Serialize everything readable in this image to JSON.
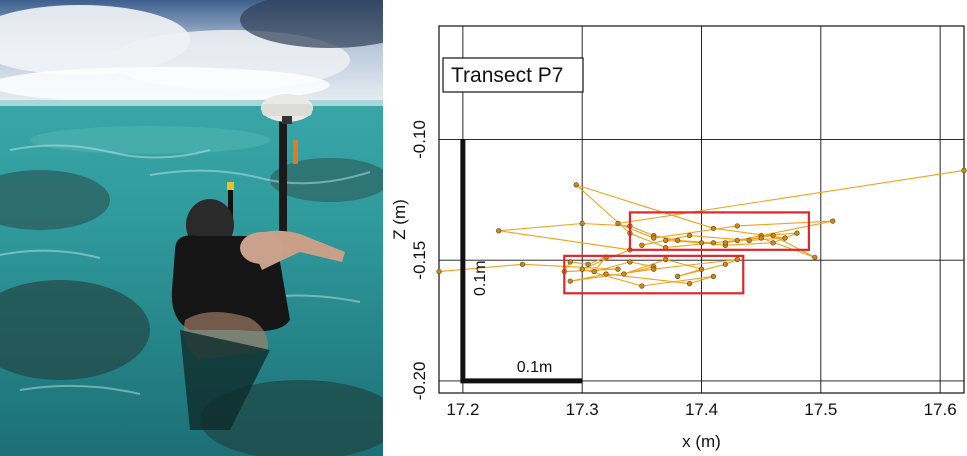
{
  "photo": {
    "description_icon": "snorkeler-with-gps-pole-photo"
  },
  "chart_data": {
    "type": "scatter",
    "title": "Transect P7",
    "xlabel": "x (m)",
    "ylabel": "Z (m)",
    "xlim": [
      17.18,
      17.62
    ],
    "ylim": [
      -0.205,
      -0.053
    ],
    "xticks": [
      17.2,
      17.3,
      17.4,
      17.5,
      17.6
    ],
    "xtick_labels": [
      "17.2",
      "17.3",
      "17.4",
      "17.5",
      "17.6"
    ],
    "yticks": [
      -0.1,
      -0.15,
      -0.2
    ],
    "ytick_labels": [
      "-0.10",
      "-0.15",
      "-0.20"
    ],
    "grid": true,
    "line_color": "#f0a21e",
    "point_color": "#c88a1a",
    "box_color": "#e0262b",
    "scale_bar": {
      "vertical_label": "0.1m",
      "horizontal_label": "0.1m",
      "length": 0.1
    },
    "highlight_boxes": [
      {
        "x": [
          17.34,
          17.49
        ],
        "y": [
          -0.1457,
          -0.1302
        ]
      },
      {
        "x": [
          17.285,
          17.435
        ],
        "y": [
          -0.1637,
          -0.1482
        ]
      }
    ],
    "series": [
      {
        "points": [
          [
            17.18,
            -0.1547
          ],
          [
            17.25,
            -0.1517
          ],
          [
            17.33,
            -0.1537
          ],
          [
            17.285,
            -0.1547
          ],
          [
            17.29,
            -0.1507
          ],
          [
            17.305,
            -0.1517
          ],
          [
            17.32,
            -0.1487
          ],
          [
            17.31,
            -0.1547
          ],
          [
            17.34,
            -0.1507
          ],
          [
            17.36,
            -0.1527
          ],
          [
            17.335,
            -0.1557
          ],
          [
            17.37,
            -0.1497
          ],
          [
            17.4,
            -0.1537
          ],
          [
            17.38,
            -0.1567
          ],
          [
            17.42,
            -0.1517
          ],
          [
            17.43,
            -0.1497
          ],
          [
            17.36,
            -0.1537
          ],
          [
            17.29,
            -0.1587
          ],
          [
            17.32,
            -0.1557
          ],
          [
            17.39,
            -0.1597
          ],
          [
            17.41,
            -0.1567
          ],
          [
            17.35,
            -0.1607
          ],
          [
            17.3,
            -0.1537
          ],
          [
            17.34,
            -0.1457
          ],
          [
            17.23,
            -0.1378
          ],
          [
            17.3,
            -0.1348
          ],
          [
            17.34,
            -0.1358
          ],
          [
            17.36,
            -0.1398
          ],
          [
            17.38,
            -0.1418
          ],
          [
            17.41,
            -0.1428
          ],
          [
            17.43,
            -0.1418
          ],
          [
            17.45,
            -0.1398
          ],
          [
            17.48,
            -0.1388
          ],
          [
            17.46,
            -0.1428
          ],
          [
            17.42,
            -0.1438
          ],
          [
            17.4,
            -0.1428
          ],
          [
            17.37,
            -0.1418
          ],
          [
            17.35,
            -0.1438
          ],
          [
            17.39,
            -0.1398
          ],
          [
            17.44,
            -0.1418
          ],
          [
            17.47,
            -0.1408
          ],
          [
            17.41,
            -0.1368
          ],
          [
            17.295,
            -0.1188
          ],
          [
            17.34,
            -0.1388
          ],
          [
            17.37,
            -0.1448
          ],
          [
            17.45,
            -0.1408
          ],
          [
            17.495,
            -0.1488
          ],
          [
            17.46,
            -0.1398
          ],
          [
            17.42,
            -0.1428
          ],
          [
            17.51,
            -0.1338
          ],
          [
            17.43,
            -0.1358
          ],
          [
            17.36,
            -0.1408
          ],
          [
            17.33,
            -0.1348
          ],
          [
            17.62,
            -0.1128
          ]
        ]
      }
    ]
  }
}
